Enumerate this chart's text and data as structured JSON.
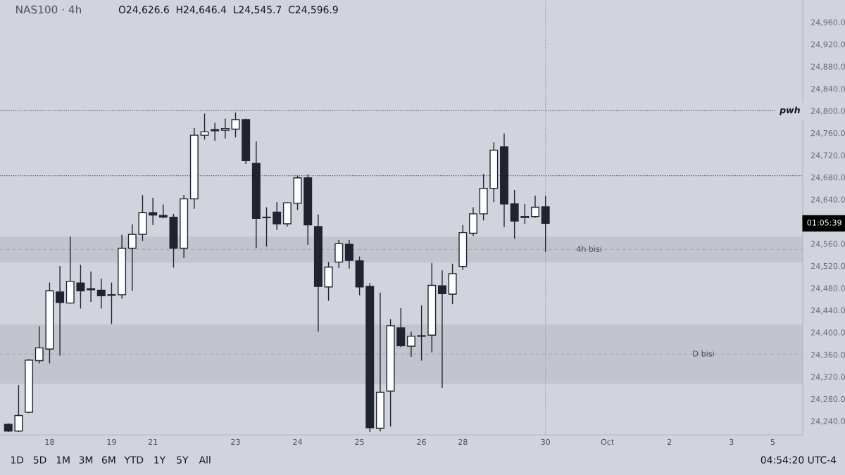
{
  "chart_data": {
    "type": "candlestick",
    "title": "NAS100 · 4h",
    "subtitle": "O24,626.6  H24,646.4  L24,545.7  C24,596.9",
    "categories": [
      null,
      null,
      null,
      null,
      "18",
      null,
      null,
      null,
      null,
      null,
      "19",
      null,
      null,
      null,
      "21",
      null,
      null,
      null,
      null,
      null,
      null,
      null,
      "23",
      null,
      null,
      null,
      null,
      null,
      "24",
      null,
      null,
      null,
      null,
      null,
      "25",
      null,
      null,
      null,
      null,
      null,
      "26",
      null,
      null,
      null,
      "28",
      null,
      null,
      null,
      null,
      null,
      null,
      null,
      "30",
      null,
      null,
      null,
      null,
      null,
      "Oct",
      null,
      null,
      null,
      null,
      null,
      "2",
      null,
      null,
      null,
      null,
      null,
      "3",
      null,
      null,
      null,
      "5",
      null,
      null
    ],
    "ohlc": [
      [
        24234,
        24236,
        24220,
        24222
      ],
      [
        24222,
        24305,
        24220,
        24250
      ],
      [
        24256,
        24352,
        24254,
        24350
      ],
      [
        24349,
        24411,
        24344,
        24372
      ],
      [
        24370,
        24490,
        24344,
        24475
      ],
      [
        24473,
        24520,
        24358,
        24454
      ],
      [
        24453,
        24573,
        24452,
        24492
      ],
      [
        24489,
        24522,
        24443,
        24475
      ],
      [
        24479,
        24510,
        24455,
        24477
      ],
      [
        24476,
        24497,
        24443,
        24466
      ],
      [
        24468,
        24490,
        24415,
        24467
      ],
      [
        24468,
        24576,
        24461,
        24552
      ],
      [
        24552,
        24595,
        24475,
        24577
      ],
      [
        24577,
        24648,
        24565,
        24616
      ],
      [
        24616,
        24643,
        24594,
        24612
      ],
      [
        24611,
        24631,
        24606,
        24608
      ],
      [
        24608,
        24614,
        24517,
        24552
      ],
      [
        24552,
        24648,
        24534,
        24641
      ],
      [
        24641,
        24769,
        24623,
        24756
      ],
      [
        24756,
        24795,
        24748,
        24762
      ],
      [
        24766,
        24778,
        24746,
        24764
      ],
      [
        24765,
        24786,
        24750,
        24768
      ],
      [
        24767,
        24797,
        24752,
        24784
      ],
      [
        24784,
        24786,
        24704,
        24710
      ],
      [
        24705,
        24745,
        24552,
        24606
      ],
      [
        24608,
        24626,
        24555,
        24607
      ],
      [
        24617,
        24635,
        24585,
        24596
      ],
      [
        24596,
        24635,
        24591,
        24634
      ],
      [
        24633,
        24683,
        24621,
        24679
      ],
      [
        24679,
        24685,
        24558,
        24594
      ],
      [
        24591,
        24613,
        24401,
        24483
      ],
      [
        24482,
        24527,
        24457,
        24518
      ],
      [
        24527,
        24567,
        24516,
        24560
      ],
      [
        24559,
        24567,
        24515,
        24530
      ],
      [
        24529,
        24537,
        24467,
        24482
      ],
      [
        24483,
        24489,
        24220,
        24228
      ],
      [
        24227,
        24472,
        24221,
        24292
      ],
      [
        24294,
        24424,
        24230,
        24412
      ],
      [
        24408,
        24444,
        24373,
        24376
      ],
      [
        24375,
        24401,
        24356,
        24393
      ],
      [
        24394,
        24449,
        24349,
        24393
      ],
      [
        24395,
        24525,
        24364,
        24485
      ],
      [
        24484,
        24512,
        24300,
        24470
      ],
      [
        24469,
        24524,
        24451,
        24506
      ],
      [
        24519,
        24594,
        24513,
        24580
      ],
      [
        24579,
        24626,
        24574,
        24614
      ],
      [
        24614,
        24686,
        24602,
        24660
      ],
      [
        24660,
        24743,
        24635,
        24729
      ],
      [
        24735,
        24759,
        24590,
        24632
      ],
      [
        24632,
        24657,
        24569,
        24601
      ],
      [
        24607,
        24632,
        24596,
        24609
      ],
      [
        24609,
        24647,
        24607,
        24626
      ],
      [
        24626.6,
        24646.4,
        24545.7,
        24596.9
      ],
      null,
      null,
      null,
      null,
      null,
      null,
      null,
      null,
      null,
      null,
      null,
      null,
      null,
      null,
      null,
      null,
      null,
      null,
      null,
      null,
      null,
      null,
      null,
      null
    ],
    "colors": [
      "#1f2430",
      "#ffffff",
      "#ffffff",
      "#ffffff",
      "#ffffff",
      "#1f2430",
      "#ffffff",
      "#1f2430",
      "#1f2430",
      "#1f2430",
      "#1f2430",
      "#ffffff",
      "#ffffff",
      "#ffffff",
      "#1f2430",
      "#1f2430",
      "#1f2430",
      "#ffffff",
      "#ffffff",
      "#ffffff",
      "#1f2430",
      "#ffffff",
      "#ffffff",
      "#1f2430",
      "#1f2430",
      "#1f2430",
      "#1f2430",
      "#ffffff",
      "#ffffff",
      "#1f2430",
      "#1f2430",
      "#ffffff",
      "#ffffff",
      "#1f2430",
      "#1f2430",
      "#1f2430",
      "#ffffff",
      "#ffffff",
      "#1f2430",
      "#ffffff",
      "#1f2430",
      "#ffffff",
      "#1f2430",
      "#ffffff",
      "#ffffff",
      "#ffffff",
      "#ffffff",
      "#ffffff",
      "#1f2430",
      "#1f2430",
      "#ffffff",
      "#ffffff",
      "#1f2430",
      null,
      null,
      null,
      null,
      null,
      null,
      null,
      null,
      null,
      null,
      null,
      null,
      null,
      null,
      null,
      null,
      null,
      null,
      null,
      null,
      null,
      null,
      null,
      null
    ],
    "ylim": [
      24215,
      25000
    ],
    "yticks": [
      {
        "value": 24240,
        "label": "24,240.0"
      },
      {
        "value": 24280,
        "label": "24,280.0"
      },
      {
        "value": 24320,
        "label": "24,320.0"
      },
      {
        "value": 24360,
        "label": "24,360.0"
      },
      {
        "value": 24400,
        "label": "24,400.0"
      },
      {
        "value": 24440,
        "label": "24,440.0"
      },
      {
        "value": 24480,
        "label": "24,480.0"
      },
      {
        "value": 24520,
        "label": "24,520.0"
      },
      {
        "value": 24560,
        "label": "24,560.0"
      },
      {
        "value": 24640,
        "label": "24,640.0"
      },
      {
        "value": 24680,
        "label": "24,680.0"
      },
      {
        "value": 24720,
        "label": "24,720.0"
      },
      {
        "value": 24760,
        "label": "24,760.0"
      },
      {
        "value": 24800,
        "label": "24,800.0"
      },
      {
        "value": 24840,
        "label": "24,840.0"
      },
      {
        "value": 24880,
        "label": "24,880.0"
      },
      {
        "value": 24920,
        "label": "24,920.0"
      },
      {
        "value": 24960,
        "label": "24,960.0"
      }
    ],
    "ref_lines": [
      {
        "axis": "y",
        "value": 24800,
        "label": "pwh",
        "line_style": "dotted",
        "color": "#555a66"
      },
      {
        "axis": "y",
        "value": 24683,
        "line_style": "dotted",
        "color": "#555a66"
      },
      {
        "axis": "y",
        "value": 24361,
        "line_style": "dashed",
        "color": "#a9acb4"
      },
      {
        "axis": "y",
        "value": 24550,
        "line_style": "dashed",
        "color": "#a9acb4"
      },
      {
        "axis": "x",
        "value": "30",
        "line_style": "dotted",
        "color": "#9598a1"
      }
    ],
    "bands": [
      {
        "axis": "y",
        "from": 24307,
        "to": 24414,
        "label": "D bisi",
        "color": "#c2c5cd"
      },
      {
        "axis": "y",
        "from": 24526,
        "to": 24573,
        "label": "4h bisi",
        "color": "#c2c5cd"
      }
    ],
    "annotations": [
      "01:05:39",
      "1D",
      "5D",
      "1M",
      "3M",
      "6M",
      "YTD",
      "1Y",
      "5Y",
      "All",
      "04:54:20 UTC-4"
    ]
  }
}
